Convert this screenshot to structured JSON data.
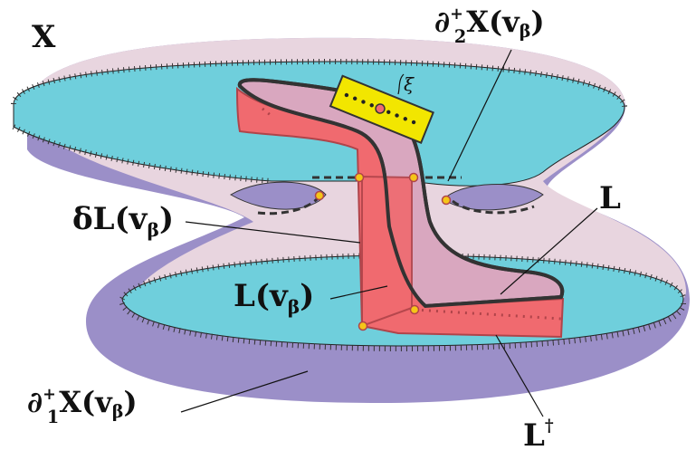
{
  "labels": {
    "space": "X",
    "boundary_top": {
      "prefix": "∂",
      "sup": "+",
      "sub": "2",
      "body": "X(v",
      "beta": "β",
      "close": ")"
    },
    "boundary_bottom": {
      "prefix": "∂",
      "sup": "+",
      "sub": "1",
      "body": "X(v",
      "beta": "β",
      "close": ")"
    },
    "delta_l": {
      "body": "δL(v",
      "beta": "β",
      "close": ")"
    },
    "l_v": {
      "body": "L(v",
      "beta": "β",
      "close": ")"
    },
    "l": "L",
    "l_dagger": {
      "body": "L",
      "sup": "†"
    },
    "xi": "ξ"
  },
  "colors": {
    "outer_region": "#9b8fc8",
    "inner_pink": "#e8d5df",
    "cyan_disk": "#6fcfdc",
    "ribbon_front": "#f06a6f",
    "ribbon_back": "#d9a7bf",
    "ribbon_outline": "#333333",
    "card": "#f2e600",
    "point": "#f5c518"
  }
}
